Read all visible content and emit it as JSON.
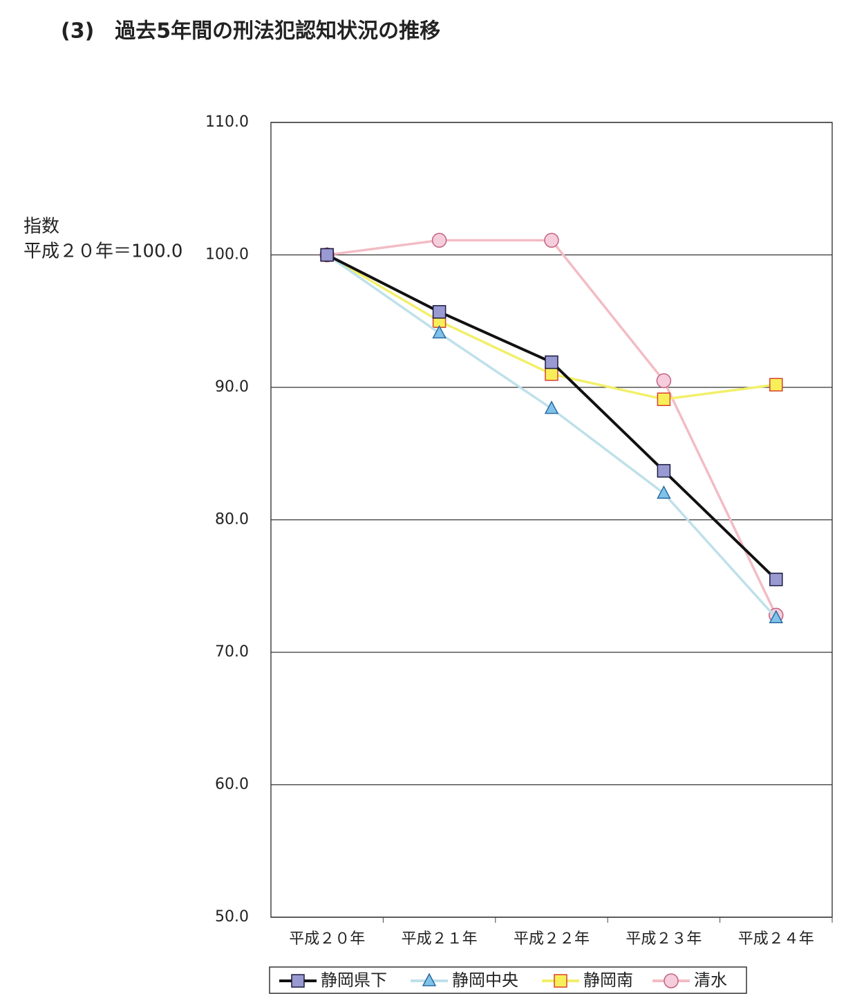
{
  "chart_data": {
    "type": "line",
    "title": "(3)　過去5年間の刑法犯認知状況の推移",
    "y_label_lines": [
      "指数",
      "平成２０年＝100.0"
    ],
    "categories": [
      "平成２０年",
      "平成２１年",
      "平成２２年",
      "平成２３年",
      "平成２４年"
    ],
    "series": [
      {
        "name": "静岡県下",
        "color": "#111111",
        "marker": "square",
        "marker_fill": "#9a9ad2",
        "marker_stroke": "#1a1a40",
        "values": [
          100.0,
          95.7,
          91.9,
          83.7,
          75.5
        ]
      },
      {
        "name": "静岡中央",
        "color": "#bfe0ea",
        "marker": "triangle",
        "marker_fill": "#7fc3ea",
        "marker_stroke": "#2a6aa0",
        "values": [
          100.0,
          94.1,
          88.4,
          82.0,
          72.6
        ]
      },
      {
        "name": "静岡南",
        "color": "#f2ef6a",
        "marker": "square",
        "marker_fill": "#f7ef5a",
        "marker_stroke": "#d9402a",
        "values": [
          100.0,
          95.0,
          91.0,
          89.1,
          90.2
        ]
      },
      {
        "name": "清水",
        "color": "#f3bcc4",
        "marker": "circle",
        "marker_fill": "#f6cddd",
        "marker_stroke": "#c2607e",
        "values": [
          100.0,
          101.1,
          101.1,
          90.5,
          72.8
        ]
      }
    ],
    "ylim": [
      50,
      110
    ],
    "yticks": [
      {
        "value": 50,
        "label": "50.0"
      },
      {
        "value": 60,
        "label": "60.0"
      },
      {
        "value": 70,
        "label": "70.0"
      },
      {
        "value": 80,
        "label": "80.0"
      },
      {
        "value": 90,
        "label": "90.0"
      },
      {
        "value": 100,
        "label": "100.0"
      },
      {
        "value": 110,
        "label": "110.0"
      }
    ],
    "grid": true,
    "legend": "bottom"
  }
}
